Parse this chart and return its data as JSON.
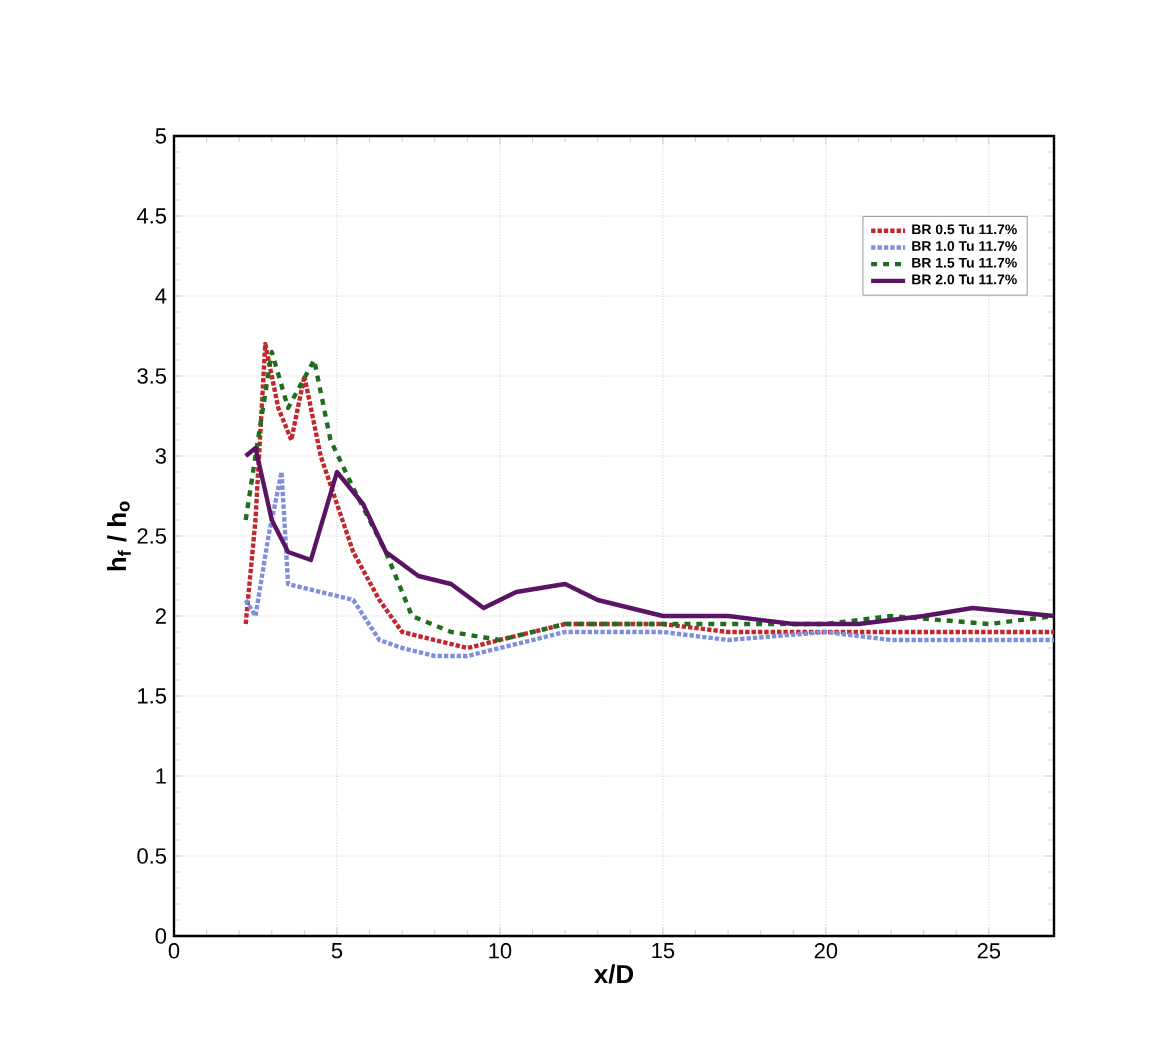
{
  "chart_data": {
    "type": "line",
    "xlabel": "x/D",
    "ylabel": "h$_{f}$ / h$_{o}$",
    "xlim": [
      0,
      27
    ],
    "ylim": [
      0,
      5
    ],
    "xticks": [
      0,
      5,
      10,
      15,
      20,
      25
    ],
    "yticks": [
      0,
      0.5,
      1,
      1.5,
      2,
      2.5,
      3,
      3.5,
      4,
      4.5,
      5
    ],
    "grid": true,
    "legend": "top right",
    "series": [
      {
        "name": "BR 0.5 Tu 11.7%",
        "color": "#c0282d",
        "line_style": "dotted",
        "x": [
          2.2,
          2.5,
          2.8,
          3.2,
          3.6,
          4.0,
          4.5,
          5.0,
          5.5,
          6.3,
          7.0,
          8.0,
          9.0,
          10.0,
          12.0,
          15.0,
          17.0,
          20.0,
          22.0,
          25.0,
          27.0
        ],
        "values": [
          1.95,
          2.6,
          3.7,
          3.3,
          3.1,
          3.5,
          3.0,
          2.7,
          2.4,
          2.1,
          1.9,
          1.85,
          1.8,
          1.85,
          1.95,
          1.95,
          1.9,
          1.9,
          1.9,
          1.9,
          1.9
        ]
      },
      {
        "name": "BR 1.0 Tu 11.7%",
        "color": "#7f8fdc",
        "line_style": "dotted",
        "x": [
          2.2,
          2.5,
          2.9,
          3.3,
          3.5,
          4.5,
          5.5,
          6.3,
          7.0,
          8.0,
          9.0,
          10.0,
          12.0,
          15.0,
          17.0,
          20.0,
          22.0,
          25.0,
          27.0
        ],
        "values": [
          2.1,
          2.0,
          2.5,
          2.9,
          2.2,
          2.15,
          2.1,
          1.85,
          1.8,
          1.75,
          1.75,
          1.8,
          1.9,
          1.9,
          1.85,
          1.9,
          1.85,
          1.85,
          1.85
        ]
      },
      {
        "name": "BR 1.5 Tu 11.7%",
        "color": "#1e6e1e",
        "line_style": "dashed",
        "x": [
          2.2,
          2.5,
          3.0,
          3.5,
          4.3,
          4.8,
          5.5,
          6.5,
          7.3,
          8.5,
          10.0,
          12.0,
          15.0,
          17.0,
          20.0,
          22.0,
          25.0,
          27.0
        ],
        "values": [
          2.6,
          3.0,
          3.65,
          3.3,
          3.6,
          3.1,
          2.8,
          2.4,
          2.0,
          1.9,
          1.85,
          1.95,
          1.95,
          1.95,
          1.95,
          2.0,
          1.95,
          2.0
        ]
      },
      {
        "name": "BR 2.0 Tu 11.7%",
        "color": "#5a1464",
        "line_style": "solid",
        "x": [
          2.2,
          2.5,
          3.0,
          3.5,
          4.2,
          5.0,
          5.8,
          6.5,
          7.5,
          8.5,
          9.5,
          10.5,
          12.0,
          13.0,
          15.0,
          17.0,
          19.0,
          21.0,
          23.0,
          24.5,
          27.0
        ],
        "values": [
          3.0,
          3.05,
          2.6,
          2.4,
          2.35,
          2.9,
          2.7,
          2.4,
          2.25,
          2.2,
          2.05,
          2.15,
          2.2,
          2.1,
          2.0,
          2.0,
          1.95,
          1.95,
          2.0,
          2.05,
          2.0
        ]
      }
    ]
  }
}
